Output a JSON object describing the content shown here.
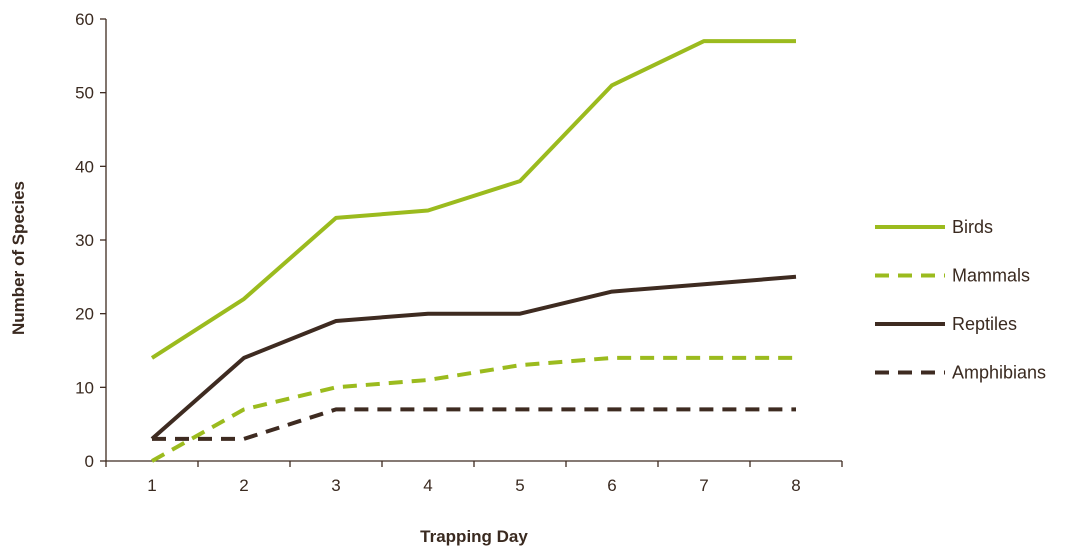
{
  "chart_data": {
    "type": "line",
    "title": "",
    "xlabel": "Trapping Day",
    "ylabel": "Number of Species",
    "x": [
      1,
      2,
      3,
      4,
      5,
      6,
      7,
      8
    ],
    "ylim": [
      0,
      60
    ],
    "yticks": [
      0,
      10,
      20,
      30,
      40,
      50,
      60
    ],
    "grid": false,
    "legend_position": "right",
    "series": [
      {
        "name": "Birds",
        "values": [
          14,
          22,
          33,
          34,
          38,
          51,
          57,
          57
        ],
        "color": "#9bbb1e",
        "dash": "solid"
      },
      {
        "name": "Mammals",
        "values": [
          0,
          7,
          10,
          11,
          13,
          14,
          14,
          14
        ],
        "color": "#9bbb1e",
        "dash": "dashed"
      },
      {
        "name": "Reptiles",
        "values": [
          3,
          14,
          19,
          20,
          20,
          23,
          24,
          25
        ],
        "color": "#3e2b21",
        "dash": "solid"
      },
      {
        "name": "Amphibians",
        "values": [
          3,
          3,
          7,
          7,
          7,
          7,
          7,
          7
        ],
        "color": "#3e2b21",
        "dash": "dashed"
      }
    ]
  }
}
